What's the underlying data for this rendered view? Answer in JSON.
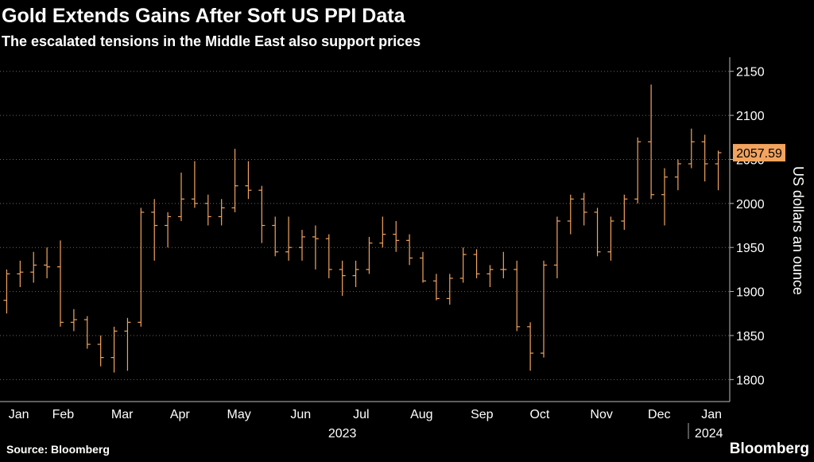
{
  "chart_data": {
    "type": "ohlc",
    "title": "Gold Extends Gains After Soft US PPI Data",
    "subtitle": "The escalated tensions in the Middle East also support prices",
    "y_axis_label": "US dollars an ounce",
    "source": "Source: Bloomberg",
    "brand": "Bloomberg",
    "series": [
      {
        "name": "Gold",
        "color": "#f2a35e",
        "values": [
          [
            1890,
            1925,
            1875,
            1920
          ],
          [
            1920,
            1935,
            1905,
            1922
          ],
          [
            1922,
            1945,
            1910,
            1930
          ],
          [
            1930,
            1950,
            1915,
            1928
          ],
          [
            1928,
            1958,
            1860,
            1865
          ],
          [
            1865,
            1880,
            1855,
            1868
          ],
          [
            1868,
            1872,
            1835,
            1840
          ],
          [
            1840,
            1850,
            1815,
            1825
          ],
          [
            1825,
            1860,
            1808,
            1855
          ],
          [
            1855,
            1870,
            1810,
            1865
          ],
          [
            1865,
            1995,
            1860,
            1990
          ],
          [
            1990,
            2005,
            1935,
            1975
          ],
          [
            1975,
            1990,
            1950,
            1985
          ],
          [
            1985,
            2035,
            1980,
            2005
          ],
          [
            2005,
            2048,
            1995,
            2000
          ],
          [
            2000,
            2010,
            1975,
            1985
          ],
          [
            1985,
            2005,
            1975,
            1995
          ],
          [
            1995,
            2062,
            1990,
            2020
          ],
          [
            2020,
            2048,
            2005,
            2015
          ],
          [
            2015,
            2020,
            1955,
            1975
          ],
          [
            1975,
            1985,
            1940,
            1945
          ],
          [
            1945,
            1985,
            1935,
            1950
          ],
          [
            1950,
            1970,
            1935,
            1962
          ],
          [
            1962,
            1975,
            1925,
            1960
          ],
          [
            1960,
            1965,
            1915,
            1925
          ],
          [
            1925,
            1935,
            1895,
            1918
          ],
          [
            1918,
            1935,
            1905,
            1925
          ],
          [
            1925,
            1962,
            1920,
            1955
          ],
          [
            1955,
            1985,
            1950,
            1965
          ],
          [
            1965,
            1980,
            1945,
            1958
          ],
          [
            1958,
            1965,
            1930,
            1938
          ],
          [
            1938,
            1945,
            1910,
            1912
          ],
          [
            1912,
            1920,
            1890,
            1892
          ],
          [
            1892,
            1920,
            1885,
            1915
          ],
          [
            1915,
            1950,
            1910,
            1942
          ],
          [
            1942,
            1948,
            1915,
            1920
          ],
          [
            1920,
            1930,
            1905,
            1925
          ],
          [
            1925,
            1945,
            1915,
            1925
          ],
          [
            1925,
            1935,
            1855,
            1860
          ],
          [
            1860,
            1865,
            1810,
            1830
          ],
          [
            1830,
            1935,
            1825,
            1930
          ],
          [
            1930,
            1985,
            1915,
            1980
          ],
          [
            1980,
            2010,
            1965,
            2005
          ],
          [
            2005,
            2012,
            1975,
            1990
          ],
          [
            1990,
            1995,
            1940,
            1945
          ],
          [
            1945,
            1985,
            1935,
            1980
          ],
          [
            1980,
            2010,
            1970,
            2005
          ],
          [
            2005,
            2075,
            2000,
            2070
          ],
          [
            2070,
            2135,
            2005,
            2010
          ],
          [
            2010,
            2040,
            1975,
            2030
          ],
          [
            2030,
            2050,
            2015,
            2045
          ],
          [
            2045,
            2085,
            2040,
            2070
          ],
          [
            2070,
            2078,
            2025,
            2045
          ],
          [
            2045,
            2060,
            2015,
            2057.59
          ]
        ]
      }
    ],
    "xlim": [
      -0.5,
      53.5
    ],
    "xticks": [
      {
        "value": 0.9,
        "label": "Jan"
      },
      {
        "value": 4.2,
        "label": "Feb"
      },
      {
        "value": 8.6,
        "label": "Mar"
      },
      {
        "value": 12.9,
        "label": "Apr"
      },
      {
        "value": 17.3,
        "label": "May"
      },
      {
        "value": 21.9,
        "label": "Jun"
      },
      {
        "value": 26.4,
        "label": "Jul"
      },
      {
        "value": 30.9,
        "label": "Aug"
      },
      {
        "value": 35.4,
        "label": "Sep"
      },
      {
        "value": 39.7,
        "label": "Oct"
      },
      {
        "value": 44.3,
        "label": "Nov"
      },
      {
        "value": 48.6,
        "label": "Dec"
      },
      {
        "value": 52.5,
        "label": "Jan"
      }
    ],
    "year_ticks": [
      {
        "value": 25,
        "label": "2023"
      },
      {
        "value": 52.3,
        "label": "2024"
      }
    ],
    "ylim": [
      1775,
      2166
    ],
    "yticks": [
      1800,
      1850,
      1900,
      1950,
      2000,
      2050,
      2100,
      2150
    ],
    "grid": true
  }
}
